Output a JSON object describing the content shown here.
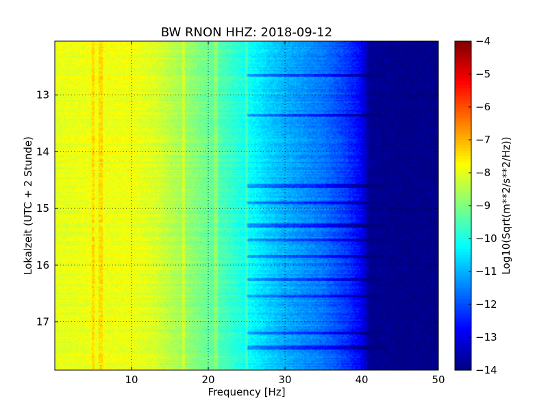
{
  "chart_data": {
    "type": "heatmap",
    "title": "BW RNON HHZ: 2018-09-12",
    "xlabel": "Frequency [Hz]",
    "ylabel": "Lokalzeit (UTC + 2 Stunde)",
    "xlim": [
      0,
      50
    ],
    "ylim": [
      12.05,
      17.85
    ],
    "y_inverted": true,
    "x_ticks": [
      10,
      20,
      30,
      40,
      50
    ],
    "y_ticks": [
      13,
      14,
      15,
      16,
      17
    ],
    "grid": true,
    "colormap": "jet",
    "colorbar": {
      "label": "Log10(Sqrt(m**2/s**2/Hz))",
      "range": [
        -14,
        -4
      ],
      "ticks": [
        -4,
        -5,
        -6,
        -7,
        -8,
        -9,
        -10,
        -11,
        -12,
        -13,
        -14
      ]
    },
    "psd_profile": {
      "frequency_hz": [
        0,
        5,
        10,
        13,
        15,
        20,
        25,
        28,
        30,
        35,
        38,
        40,
        41,
        45,
        50
      ],
      "log10_amplitude": [
        -8.0,
        -7.9,
        -7.9,
        -8.1,
        -8.4,
        -9.2,
        -10.1,
        -10.7,
        -11.0,
        -11.6,
        -12.2,
        -12.8,
        -13.8,
        -13.9,
        -13.9
      ]
    },
    "highlights": {
      "bright_lines_hz": [
        5.0,
        6.0,
        16.8,
        21.0,
        25.0
      ],
      "quiet_bands_time": [
        12.65,
        13.35,
        14.6,
        14.9,
        15.3,
        15.55,
        15.85,
        16.25,
        16.55,
        17.2,
        17.45
      ]
    }
  }
}
